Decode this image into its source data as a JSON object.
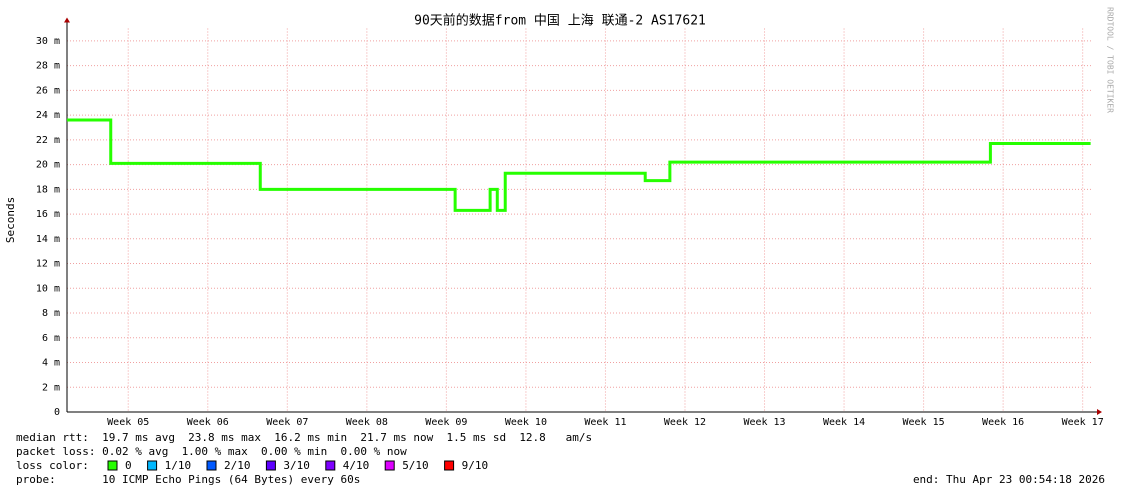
{
  "chart_data": {
    "type": "line",
    "title": "90天前的数据from 中国 上海 联通-2 AS17621",
    "y_label": "Seconds",
    "watermark": "RRDTOOL / TOBI OETIKER",
    "x": [
      4.23,
      4.78,
      4.78,
      6.66,
      6.66,
      9.11,
      9.11,
      9.55,
      9.55,
      9.64,
      9.64,
      9.74,
      9.74,
      11.5,
      11.5,
      11.81,
      11.81,
      15.84,
      15.84,
      17.1
    ],
    "values": [
      23.6,
      23.6,
      20.1,
      20.1,
      18.0,
      18.0,
      16.3,
      16.3,
      18.0,
      18.0,
      16.3,
      16.3,
      19.3,
      19.3,
      18.7,
      18.7,
      20.2,
      20.2,
      21.7,
      21.7
    ],
    "color": "#26ff00",
    "xlim": [
      4.23,
      17.13
    ],
    "xticks": [
      {
        "value": 5,
        "label": "Week 05"
      },
      {
        "value": 6,
        "label": "Week 06"
      },
      {
        "value": 7,
        "label": "Week 07"
      },
      {
        "value": 8,
        "label": "Week 08"
      },
      {
        "value": 9,
        "label": "Week 09"
      },
      {
        "value": 10,
        "label": "Week 10"
      },
      {
        "value": 11,
        "label": "Week 11"
      },
      {
        "value": 12,
        "label": "Week 12"
      },
      {
        "value": 13,
        "label": "Week 13"
      },
      {
        "value": 14,
        "label": "Week 14"
      },
      {
        "value": 15,
        "label": "Week 15"
      },
      {
        "value": 16,
        "label": "Week 16"
      },
      {
        "value": 17,
        "label": "Week 17"
      }
    ],
    "ylim": [
      0,
      31
    ],
    "yticks": [
      0,
      {
        "value": 2,
        "label": "2 m"
      },
      {
        "value": 4,
        "label": "4 m"
      },
      {
        "value": 6,
        "label": "6 m"
      },
      {
        "value": 8,
        "label": "8 m"
      },
      {
        "value": 10,
        "label": "10 m"
      },
      {
        "value": 12,
        "label": "12 m"
      },
      {
        "value": 14,
        "label": "14 m"
      },
      {
        "value": 16,
        "label": "16 m"
      },
      {
        "value": 18,
        "label": "18 m"
      },
      {
        "value": 20,
        "label": "20 m"
      },
      {
        "value": 22,
        "label": "22 m"
      },
      {
        "value": 24,
        "label": "24 m"
      },
      {
        "value": 26,
        "label": "26 m"
      },
      {
        "value": 28,
        "label": "28 m"
      },
      {
        "value": 30,
        "label": "30 m"
      }
    ],
    "grid": true,
    "stats": [
      "median rtt:  19.7 ms avg  23.8 ms max  16.2 ms min  21.7 ms now  1.5 ms sd  12.8   am/s",
      "packet loss: 0.02 % avg  1.00 % max  0.00 % min  0.00 % now"
    ],
    "loss_label": "loss color:",
    "loss_legend": [
      {
        "name": "0",
        "color": "#26ff00"
      },
      {
        "name": "1/10",
        "color": "#00b8ff"
      },
      {
        "name": "2/10",
        "color": "#0059ff"
      },
      {
        "name": "3/10",
        "color": "#5e00ff"
      },
      {
        "name": "4/10",
        "color": "#7e00ff"
      },
      {
        "name": "5/10",
        "color": "#dd00ff"
      },
      {
        "name": "9/10",
        "color": "#ff0000"
      }
    ],
    "probe": "probe:       10 ICMP Echo Pings (64 Bytes) every 60s",
    "end": "end: Thu Apr 23 00:54:18 2026"
  }
}
